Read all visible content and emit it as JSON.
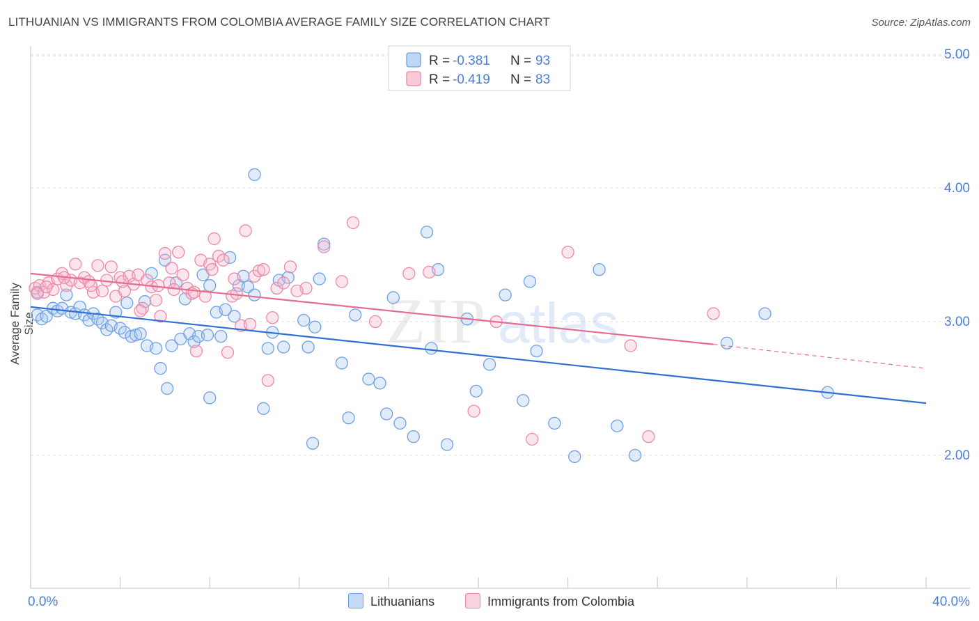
{
  "header": {
    "title": "LITHUANIAN VS IMMIGRANTS FROM COLOMBIA AVERAGE FAMILY SIZE CORRELATION CHART",
    "source": "Source: ZipAtlas.com"
  },
  "watermark": "ZIPatlas",
  "legend": {
    "r_label": "R =",
    "n_label": "N =",
    "rows": [
      {
        "r": "-0.381",
        "n": "93",
        "color": "#a9c8f2"
      },
      {
        "r": "-0.419",
        "n": "83",
        "color": "#f5b8cb"
      }
    ]
  },
  "bottom_legend": {
    "items": [
      {
        "label": "Lithuanians",
        "color": "#a9c8f2"
      },
      {
        "label": "Immigrants from Colombia",
        "color": "#f5b8cb"
      }
    ]
  },
  "colors": {
    "blue_point": "#6f9fe3",
    "pink_point": "#ee88a8",
    "blue_line": "#2f6fd1",
    "pink_line": "#e46b94",
    "axis_text": "#4a7fd4"
  },
  "chart_data": {
    "type": "scatter",
    "title": "LITHUANIAN VS IMMIGRANTS FROM COLOMBIA AVERAGE FAMILY SIZE CORRELATION CHART",
    "xlabel": "",
    "ylabel": "Average Family Size",
    "xlim": [
      0,
      40
    ],
    "ylim": [
      1.0,
      5.1
    ],
    "x_tick_labels": [
      "0.0%",
      "40.0%"
    ],
    "y_ticks": [
      2.0,
      3.0,
      4.0,
      5.0
    ],
    "y_tick_labels": [
      "2.00",
      "3.00",
      "4.00",
      "5.00"
    ],
    "grid": "horizontal dashed",
    "legend_position": "top-center",
    "series": [
      {
        "name": "Lithuanians",
        "r": -0.381,
        "n": 93,
        "trend": {
          "x": [
            0,
            40
          ],
          "y": [
            3.11,
            2.39
          ]
        },
        "points": [
          [
            0.3,
            3.22
          ],
          [
            0.3,
            3.05
          ],
          [
            0.5,
            3.02
          ],
          [
            0.7,
            3.04
          ],
          [
            1.0,
            3.1
          ],
          [
            1.2,
            3.08
          ],
          [
            1.4,
            3.1
          ],
          [
            1.6,
            3.2
          ],
          [
            1.8,
            3.07
          ],
          [
            2.0,
            3.06
          ],
          [
            2.2,
            3.11
          ],
          [
            2.4,
            3.05
          ],
          [
            2.6,
            3.01
          ],
          [
            2.8,
            3.06
          ],
          [
            3.0,
            3.02
          ],
          [
            3.2,
            2.99
          ],
          [
            3.4,
            2.94
          ],
          [
            3.6,
            2.97
          ],
          [
            3.8,
            3.07
          ],
          [
            4.0,
            2.95
          ],
          [
            4.2,
            2.92
          ],
          [
            4.3,
            3.14
          ],
          [
            4.5,
            2.89
          ],
          [
            4.7,
            2.9
          ],
          [
            4.9,
            2.91
          ],
          [
            5.1,
            3.15
          ],
          [
            5.2,
            2.82
          ],
          [
            5.4,
            3.36
          ],
          [
            5.6,
            2.8
          ],
          [
            5.8,
            2.65
          ],
          [
            6.0,
            3.46
          ],
          [
            6.1,
            2.5
          ],
          [
            6.3,
            2.82
          ],
          [
            6.5,
            3.29
          ],
          [
            6.7,
            2.87
          ],
          [
            6.9,
            3.17
          ],
          [
            7.1,
            2.91
          ],
          [
            7.3,
            2.85
          ],
          [
            7.5,
            2.89
          ],
          [
            7.7,
            3.35
          ],
          [
            7.9,
            2.9
          ],
          [
            8.0,
            2.43
          ],
          [
            8.3,
            3.07
          ],
          [
            8.5,
            2.89
          ],
          [
            8.7,
            3.09
          ],
          [
            8.9,
            3.48
          ],
          [
            9.1,
            3.04
          ],
          [
            9.3,
            3.27
          ],
          [
            9.5,
            3.34
          ],
          [
            9.7,
            3.26
          ],
          [
            10.0,
            4.1
          ],
          [
            10.4,
            2.35
          ],
          [
            10.6,
            2.8
          ],
          [
            10.8,
            2.92
          ],
          [
            11.1,
            3.31
          ],
          [
            11.3,
            2.81
          ],
          [
            11.5,
            3.33
          ],
          [
            12.2,
            3.01
          ],
          [
            12.4,
            2.81
          ],
          [
            12.7,
            2.96
          ],
          [
            12.6,
            2.09
          ],
          [
            12.9,
            3.32
          ],
          [
            13.1,
            3.58
          ],
          [
            13.9,
            2.69
          ],
          [
            14.2,
            2.28
          ],
          [
            14.5,
            3.05
          ],
          [
            15.1,
            2.57
          ],
          [
            15.6,
            2.54
          ],
          [
            15.9,
            2.31
          ],
          [
            16.2,
            3.18
          ],
          [
            16.5,
            2.24
          ],
          [
            17.1,
            2.14
          ],
          [
            17.7,
            3.67
          ],
          [
            17.9,
            2.8
          ],
          [
            18.2,
            3.39
          ],
          [
            18.6,
            2.08
          ],
          [
            19.5,
            3.02
          ],
          [
            19.9,
            2.48
          ],
          [
            20.5,
            2.68
          ],
          [
            21.2,
            3.2
          ],
          [
            22.0,
            2.41
          ],
          [
            22.3,
            3.3
          ],
          [
            22.6,
            2.78
          ],
          [
            23.4,
            2.24
          ],
          [
            24.3,
            1.99
          ],
          [
            25.4,
            3.39
          ],
          [
            26.2,
            2.22
          ],
          [
            27.0,
            2.0
          ],
          [
            31.1,
            2.84
          ],
          [
            32.8,
            3.06
          ],
          [
            35.6,
            2.47
          ],
          [
            10.0,
            3.2
          ],
          [
            8.0,
            3.27
          ]
        ]
      },
      {
        "name": "Immigrants from Colombia",
        "r": -0.419,
        "n": 83,
        "trend": {
          "x": [
            0,
            30.5
          ],
          "y": [
            3.36,
            2.83
          ],
          "dashed_extension": {
            "x": [
              30.5,
              40
            ],
            "y": [
              2.83,
              2.65
            ]
          }
        },
        "points": [
          [
            0.2,
            3.25
          ],
          [
            0.4,
            3.27
          ],
          [
            0.6,
            3.22
          ],
          [
            0.8,
            3.29
          ],
          [
            1.0,
            3.24
          ],
          [
            1.2,
            3.32
          ],
          [
            1.4,
            3.36
          ],
          [
            1.6,
            3.27
          ],
          [
            1.8,
            3.31
          ],
          [
            2.0,
            3.43
          ],
          [
            2.2,
            3.29
          ],
          [
            2.4,
            3.33
          ],
          [
            2.6,
            3.3
          ],
          [
            2.8,
            3.22
          ],
          [
            3.0,
            3.42
          ],
          [
            3.2,
            3.23
          ],
          [
            3.4,
            3.31
          ],
          [
            3.6,
            3.41
          ],
          [
            3.8,
            3.19
          ],
          [
            4.0,
            3.33
          ],
          [
            4.2,
            3.23
          ],
          [
            4.4,
            3.34
          ],
          [
            4.6,
            3.28
          ],
          [
            4.8,
            3.35
          ],
          [
            5.0,
            3.1
          ],
          [
            5.2,
            3.31
          ],
          [
            5.4,
            3.26
          ],
          [
            5.6,
            3.16
          ],
          [
            5.8,
            3.04
          ],
          [
            6.0,
            3.51
          ],
          [
            6.2,
            3.29
          ],
          [
            6.4,
            3.24
          ],
          [
            6.6,
            3.52
          ],
          [
            6.8,
            3.35
          ],
          [
            7.0,
            3.25
          ],
          [
            7.2,
            3.21
          ],
          [
            7.4,
            2.78
          ],
          [
            7.6,
            3.46
          ],
          [
            7.8,
            3.19
          ],
          [
            8.0,
            3.43
          ],
          [
            8.2,
            3.62
          ],
          [
            8.4,
            3.49
          ],
          [
            8.6,
            3.46
          ],
          [
            8.8,
            2.77
          ],
          [
            9.0,
            3.19
          ],
          [
            9.2,
            3.21
          ],
          [
            9.4,
            2.97
          ],
          [
            9.6,
            3.68
          ],
          [
            9.8,
            2.98
          ],
          [
            10.0,
            3.34
          ],
          [
            10.2,
            3.38
          ],
          [
            10.4,
            3.39
          ],
          [
            10.6,
            2.56
          ],
          [
            10.8,
            3.03
          ],
          [
            11.0,
            3.25
          ],
          [
            11.3,
            3.29
          ],
          [
            11.6,
            3.41
          ],
          [
            12.3,
            3.25
          ],
          [
            13.1,
            3.56
          ],
          [
            13.9,
            3.3
          ],
          [
            14.4,
            3.74
          ],
          [
            15.4,
            3.0
          ],
          [
            16.9,
            3.36
          ],
          [
            17.8,
            3.37
          ],
          [
            19.8,
            2.33
          ],
          [
            20.8,
            3.0
          ],
          [
            22.4,
            2.12
          ],
          [
            24.0,
            3.52
          ],
          [
            26.8,
            2.82
          ],
          [
            27.6,
            2.14
          ],
          [
            30.5,
            3.06
          ],
          [
            0.3,
            3.21
          ],
          [
            0.7,
            3.26
          ],
          [
            1.5,
            3.33
          ],
          [
            2.7,
            3.27
          ],
          [
            4.1,
            3.3
          ],
          [
            4.9,
            3.08
          ],
          [
            5.7,
            3.27
          ],
          [
            6.3,
            3.4
          ],
          [
            7.3,
            3.22
          ],
          [
            8.1,
            3.39
          ],
          [
            9.1,
            3.32
          ],
          [
            11.9,
            3.23
          ]
        ]
      }
    ]
  }
}
